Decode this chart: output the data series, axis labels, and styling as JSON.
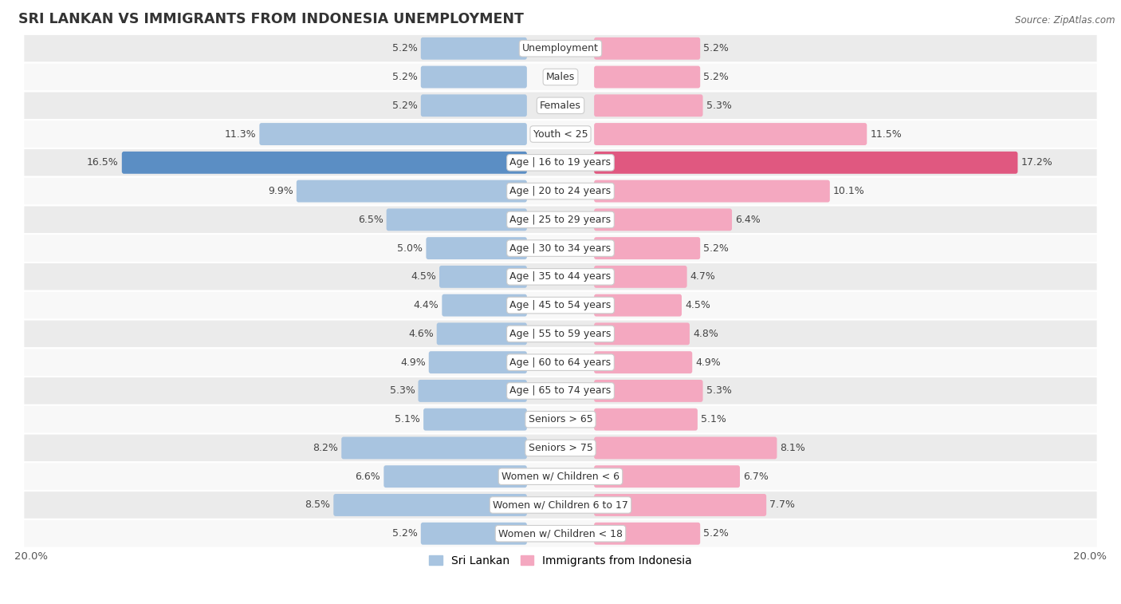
{
  "title": "SRI LANKAN VS IMMIGRANTS FROM INDONESIA UNEMPLOYMENT",
  "source": "Source: ZipAtlas.com",
  "categories": [
    "Unemployment",
    "Males",
    "Females",
    "Youth < 25",
    "Age | 16 to 19 years",
    "Age | 20 to 24 years",
    "Age | 25 to 29 years",
    "Age | 30 to 34 years",
    "Age | 35 to 44 years",
    "Age | 45 to 54 years",
    "Age | 55 to 59 years",
    "Age | 60 to 64 years",
    "Age | 65 to 74 years",
    "Seniors > 65",
    "Seniors > 75",
    "Women w/ Children < 6",
    "Women w/ Children 6 to 17",
    "Women w/ Children < 18"
  ],
  "sri_lankan": [
    5.2,
    5.2,
    5.2,
    11.3,
    16.5,
    9.9,
    6.5,
    5.0,
    4.5,
    4.4,
    4.6,
    4.9,
    5.3,
    5.1,
    8.2,
    6.6,
    8.5,
    5.2
  ],
  "indonesia": [
    5.2,
    5.2,
    5.3,
    11.5,
    17.2,
    10.1,
    6.4,
    5.2,
    4.7,
    4.5,
    4.8,
    4.9,
    5.3,
    5.1,
    8.1,
    6.7,
    7.7,
    5.2
  ],
  "sri_lankan_color": "#a8c4e0",
  "indonesia_color": "#f4a8c0",
  "row_bg_odd": "#ebebeb",
  "row_bg_even": "#f8f8f8",
  "highlight_row": 4,
  "highlight_sri_lankan_color": "#5b8ec4",
  "highlight_indonesia_color": "#e05880",
  "axis_limit": 20.0,
  "bar_height": 0.62,
  "label_fontsize": 9.0,
  "category_fontsize": 9.0,
  "title_fontsize": 12.5,
  "legend_fontsize": 10,
  "axis_label_fontsize": 9.5,
  "legend_sri_lankan": "Sri Lankan",
  "legend_indonesia": "Immigrants from Indonesia"
}
